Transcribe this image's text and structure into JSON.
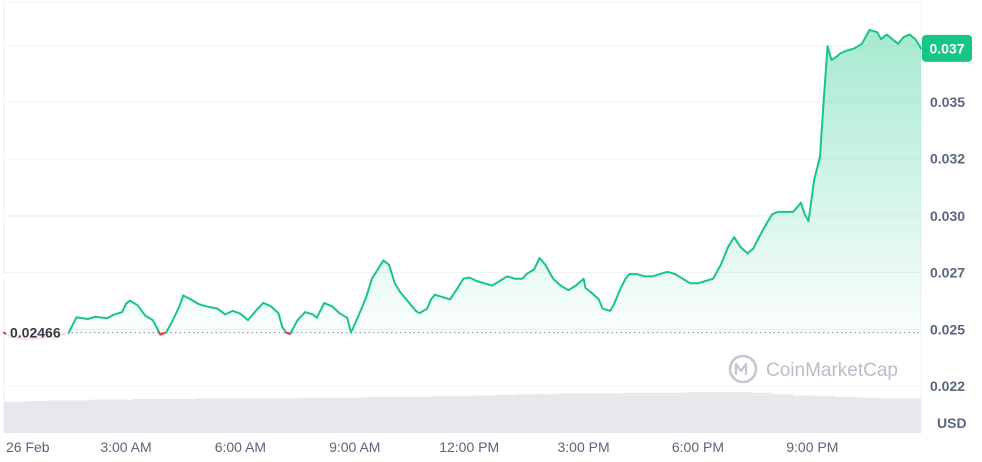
{
  "brand": {
    "watermark": "CoinMarketCap",
    "colors": {
      "up": "#16c784",
      "down": "#ea3943",
      "grid": "#eff2f5",
      "text": "#58667e",
      "volume": "#e6e8ec",
      "baseline": "#7a8291"
    }
  },
  "chart_data": {
    "type": "line",
    "title": "",
    "unit": "USD",
    "baseline_value": 0.02466,
    "baseline_label": "0.02466",
    "current_value": 0.037,
    "current_label": "0.037",
    "ylim": [
      0.0203,
      0.0391
    ],
    "y_ticks": [
      {
        "value": 0.02235,
        "label": "0.022"
      },
      {
        "value": 0.0248,
        "label": "0.025"
      },
      {
        "value": 0.02727,
        "label": "0.027"
      },
      {
        "value": 0.02972,
        "label": "0.030"
      },
      {
        "value": 0.03221,
        "label": "0.032"
      },
      {
        "value": 0.03467,
        "label": "0.035"
      },
      {
        "value": 0.0371,
        "label": "0.037"
      }
    ],
    "x_ticks": [
      {
        "hours": 0,
        "label": "26 Feb"
      },
      {
        "hours": 3,
        "label": "3:00 AM"
      },
      {
        "hours": 6,
        "label": "6:00 AM"
      },
      {
        "hours": 9,
        "label": "9:00 AM"
      },
      {
        "hours": 12,
        "label": "12:00 PM"
      },
      {
        "hours": 15,
        "label": "3:00 PM"
      },
      {
        "hours": 18,
        "label": "6:00 PM"
      },
      {
        "hours": 21,
        "label": "9:00 PM"
      }
    ],
    "x_range_hours": [
      -0.2,
      23.85
    ],
    "series": [
      {
        "values": [
          [
            -0.2,
            0.02466
          ],
          [
            0.0,
            0.02445
          ],
          [
            0.4,
            0.02437
          ],
          [
            0.8,
            0.02443
          ],
          [
            1.0,
            0.0245
          ],
          [
            1.15,
            0.0244
          ],
          [
            1.3,
            0.02455
          ],
          [
            1.5,
            0.02466
          ],
          [
            1.7,
            0.02532
          ],
          [
            2.0,
            0.02525
          ],
          [
            2.2,
            0.02535
          ],
          [
            2.5,
            0.02528
          ],
          [
            2.7,
            0.02545
          ],
          [
            2.9,
            0.02555
          ],
          [
            3.0,
            0.02591
          ],
          [
            3.1,
            0.02605
          ],
          [
            3.3,
            0.02585
          ],
          [
            3.5,
            0.0254
          ],
          [
            3.7,
            0.0252
          ],
          [
            3.8,
            0.0249
          ],
          [
            3.9,
            0.02457
          ],
          [
            4.05,
            0.02466
          ],
          [
            4.2,
            0.0251
          ],
          [
            4.4,
            0.0258
          ],
          [
            4.5,
            0.02627
          ],
          [
            4.7,
            0.0261
          ],
          [
            4.9,
            0.0259
          ],
          [
            5.1,
            0.0258
          ],
          [
            5.4,
            0.0257
          ],
          [
            5.6,
            0.02545
          ],
          [
            5.8,
            0.0256
          ],
          [
            6.0,
            0.02548
          ],
          [
            6.2,
            0.0252
          ],
          [
            6.4,
            0.0256
          ],
          [
            6.6,
            0.02595
          ],
          [
            6.8,
            0.0258
          ],
          [
            7.0,
            0.0255
          ],
          [
            7.1,
            0.0249
          ],
          [
            7.2,
            0.02466
          ],
          [
            7.3,
            0.0246
          ],
          [
            7.5,
            0.0252
          ],
          [
            7.7,
            0.02555
          ],
          [
            7.9,
            0.02545
          ],
          [
            8.0,
            0.0253
          ],
          [
            8.2,
            0.02595
          ],
          [
            8.4,
            0.0258
          ],
          [
            8.6,
            0.0255
          ],
          [
            8.8,
            0.0253
          ],
          [
            8.9,
            0.02466
          ],
          [
            9.1,
            0.0254
          ],
          [
            9.3,
            0.0262
          ],
          [
            9.45,
            0.027
          ],
          [
            9.6,
            0.0274
          ],
          [
            9.75,
            0.0278
          ],
          [
            9.9,
            0.0276
          ],
          [
            10.05,
            0.0268
          ],
          [
            10.2,
            0.0264
          ],
          [
            10.4,
            0.026
          ],
          [
            10.6,
            0.0256
          ],
          [
            10.7,
            0.0255
          ],
          [
            10.9,
            0.0257
          ],
          [
            11.0,
            0.0261
          ],
          [
            11.1,
            0.0263
          ],
          [
            11.3,
            0.0262
          ],
          [
            11.5,
            0.0261
          ],
          [
            11.7,
            0.0266
          ],
          [
            11.85,
            0.027
          ],
          [
            12.0,
            0.02705
          ],
          [
            12.2,
            0.0269
          ],
          [
            12.4,
            0.0268
          ],
          [
            12.6,
            0.0267
          ],
          [
            12.8,
            0.0269
          ],
          [
            13.0,
            0.0271
          ],
          [
            13.2,
            0.027
          ],
          [
            13.4,
            0.027
          ],
          [
            13.5,
            0.0272
          ],
          [
            13.7,
            0.0274
          ],
          [
            13.85,
            0.0279
          ],
          [
            14.0,
            0.0276
          ],
          [
            14.2,
            0.027
          ],
          [
            14.4,
            0.0267
          ],
          [
            14.6,
            0.0265
          ],
          [
            14.8,
            0.0267
          ],
          [
            15.0,
            0.027
          ],
          [
            15.05,
            0.0266
          ],
          [
            15.2,
            0.0264
          ],
          [
            15.4,
            0.0261
          ],
          [
            15.5,
            0.0257
          ],
          [
            15.7,
            0.0256
          ],
          [
            15.8,
            0.0259
          ],
          [
            15.95,
            0.0265
          ],
          [
            16.1,
            0.027
          ],
          [
            16.2,
            0.0272
          ],
          [
            16.4,
            0.0272
          ],
          [
            16.6,
            0.0271
          ],
          [
            16.8,
            0.0271
          ],
          [
            17.0,
            0.0272
          ],
          [
            17.2,
            0.0273
          ],
          [
            17.4,
            0.0272
          ],
          [
            17.6,
            0.027
          ],
          [
            17.8,
            0.0268
          ],
          [
            18.0,
            0.0268
          ],
          [
            18.2,
            0.0269
          ],
          [
            18.4,
            0.027
          ],
          [
            18.6,
            0.0276
          ],
          [
            18.8,
            0.0284
          ],
          [
            18.95,
            0.0288
          ],
          [
            19.1,
            0.0284
          ],
          [
            19.3,
            0.0281
          ],
          [
            19.45,
            0.0283
          ],
          [
            19.6,
            0.0288
          ],
          [
            19.8,
            0.0294
          ],
          [
            19.95,
            0.0298
          ],
          [
            20.1,
            0.0299
          ],
          [
            20.3,
            0.0299
          ],
          [
            20.5,
            0.0299
          ],
          [
            20.7,
            0.0303
          ],
          [
            20.8,
            0.0298
          ],
          [
            20.9,
            0.0295
          ],
          [
            21.05,
            0.0313
          ],
          [
            21.2,
            0.0323
          ],
          [
            21.3,
            0.0348
          ],
          [
            21.4,
            0.0371
          ],
          [
            21.5,
            0.0365
          ],
          [
            21.6,
            0.0366
          ],
          [
            21.75,
            0.0368
          ],
          [
            21.9,
            0.0369
          ],
          [
            22.1,
            0.037
          ],
          [
            22.3,
            0.0372
          ],
          [
            22.4,
            0.0375
          ],
          [
            22.5,
            0.0378
          ],
          [
            22.7,
            0.0377
          ],
          [
            22.8,
            0.0374
          ],
          [
            22.95,
            0.0376
          ],
          [
            23.1,
            0.0374
          ],
          [
            23.25,
            0.0372
          ],
          [
            23.4,
            0.0375
          ],
          [
            23.55,
            0.0376
          ],
          [
            23.7,
            0.0374
          ],
          [
            23.85,
            0.037
          ]
        ]
      }
    ],
    "volume": {
      "ymax": 1.0,
      "values": [
        0.45,
        0.46,
        0.47,
        0.47,
        0.48,
        0.48,
        0.49,
        0.49,
        0.49,
        0.5,
        0.5,
        0.5,
        0.5,
        0.5,
        0.51,
        0.51,
        0.51,
        0.52,
        0.52,
        0.52,
        0.53,
        0.53,
        0.54,
        0.55,
        0.56,
        0.56,
        0.57,
        0.57,
        0.57,
        0.58,
        0.58,
        0.58,
        0.59,
        0.59,
        0.59,
        0.58,
        0.56,
        0.54,
        0.53,
        0.52,
        0.51,
        0.5,
        0.5
      ]
    }
  }
}
